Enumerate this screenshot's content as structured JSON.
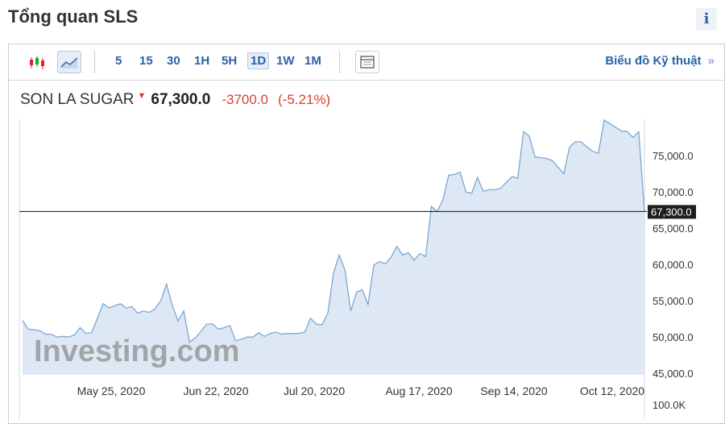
{
  "page": {
    "title": "Tổng quan SLS",
    "info_icon": "i"
  },
  "toolbar": {
    "chart_type_icons": [
      "candlestick-icon",
      "line-chart-icon"
    ],
    "intervals": [
      "5",
      "15",
      "30",
      "1H",
      "5H",
      "1D",
      "1W",
      "1M"
    ],
    "active_interval": "1D",
    "layout_icon": "layout-icon",
    "tech_link": "Biểu đồ Kỹ thuật",
    "tech_link_icon": "»"
  },
  "quote": {
    "name": "SON LA SUGAR",
    "price": "67,300.0",
    "change": "-3700.0",
    "change_pct": "(-5.21%)",
    "down_color": "#e03c31"
  },
  "chart_data": {
    "type": "area",
    "title": "",
    "xlabel": "",
    "ylabel": "",
    "x_tick_labels": [
      "May 25, 2020",
      "Jun 22, 2020",
      "Jul 20, 2020",
      "Aug 17, 2020",
      "Sep 14, 2020",
      "Oct 12, 2020"
    ],
    "y_tick_values": [
      45000,
      50000,
      55000,
      60000,
      65000,
      70000,
      75000
    ],
    "y_tick_labels": [
      "45,000.0",
      "50,000.0",
      "55,000.0",
      "60,000.0",
      "65,000.0",
      "70,000.0",
      "75,000.0"
    ],
    "volume_label": "100.0K",
    "ylim": [
      44800,
      80000
    ],
    "current_value": 67300,
    "current_label": "67,300.0",
    "watermark": "Investing.com",
    "line_color": "#7ba7d6",
    "fill_color": "#dde8f4",
    "series": [
      {
        "values": [
          52300,
          51100,
          51000,
          50900,
          50400,
          50400,
          50000,
          50100,
          50000,
          50300,
          51300,
          50500,
          50600,
          52600,
          54600,
          54000,
          54300,
          54600,
          54000,
          54200,
          53300,
          53600,
          53400,
          53900,
          55000,
          57300,
          54400,
          52200,
          53600,
          49300,
          49900,
          50800,
          51800,
          51800,
          51100,
          51300,
          51600,
          49500,
          49700,
          50000,
          50000,
          50600,
          50100,
          50500,
          50700,
          50400,
          50500,
          50500,
          50500,
          50700,
          52600,
          51800,
          51700,
          53300,
          58800,
          61300,
          59200,
          53600,
          56200,
          56500,
          54500,
          59900,
          60400,
          60100,
          61000,
          62500,
          61300,
          61600,
          60600,
          61500,
          61100,
          68000,
          67300,
          68900,
          72300,
          72400,
          72700,
          70000,
          69800,
          72000,
          70100,
          70300,
          70300,
          70500,
          71300,
          72100,
          71900,
          78300,
          77700,
          74800,
          74700,
          74600,
          74300,
          73400,
          72500,
          76200,
          76900,
          76900,
          76200,
          75600,
          75300,
          79900,
          79400,
          78900,
          78400,
          78300,
          77500,
          78300,
          67300
        ]
      }
    ]
  }
}
